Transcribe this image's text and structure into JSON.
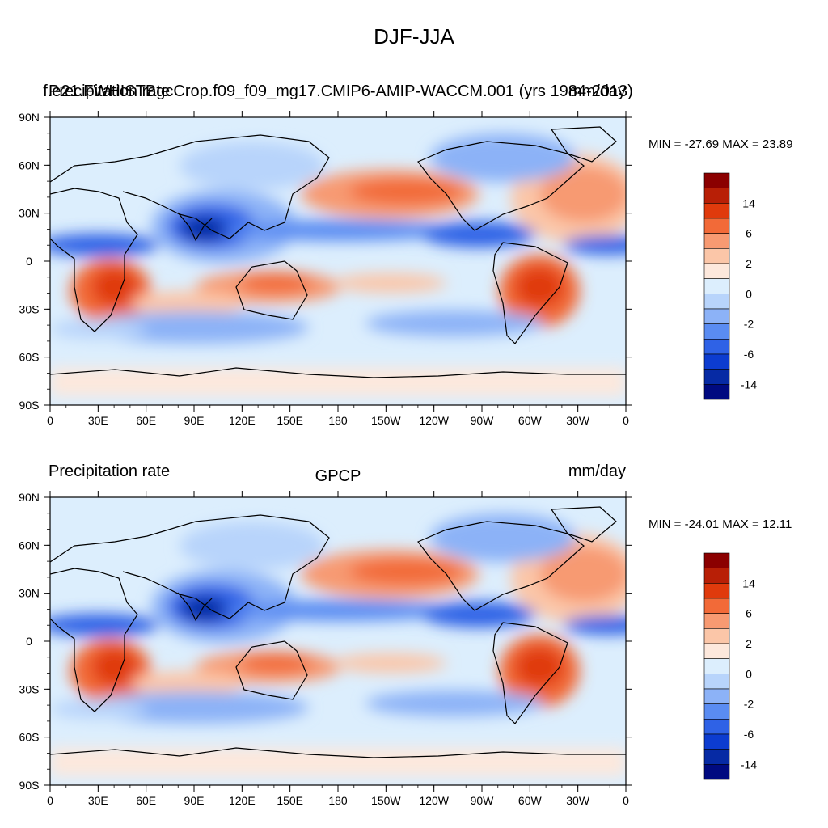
{
  "figure": {
    "title": "DJF-JJA"
  },
  "panels": [
    {
      "left_title": "Precipitation rate",
      "center_title": "f.e21.FWHISTBgcCrop.f09_f09_mg17.CMIP6-AMIP-WACCM.001 (yrs 1984-2013)",
      "right_title": "mm/day",
      "stats": "MIN = -27.69 MAX =  23.89"
    },
    {
      "left_title": "Precipitation rate",
      "center_title": "GPCP",
      "right_title": "mm/day",
      "stats": "MIN = -24.01 MAX =  12.11"
    }
  ],
  "axes": {
    "lat_labels": [
      "90N",
      "60N",
      "30N",
      "0",
      "30S",
      "60S",
      "90S"
    ],
    "lon_labels": [
      "0",
      "30E",
      "60E",
      "90E",
      "120E",
      "150E",
      "180",
      "150W",
      "120W",
      "90W",
      "60W",
      "30W",
      "0"
    ]
  },
  "colorbar": {
    "labels": [
      "14",
      "6",
      "2",
      "0",
      "-2",
      "-6",
      "-14"
    ],
    "colors": [
      "#8b0000",
      "#b81f06",
      "#e03a0c",
      "#f26a38",
      "#f79a72",
      "#fbc6a8",
      "#fde8dc",
      "#dceefd",
      "#b8d4fb",
      "#8cb2f7",
      "#5a8cf2",
      "#2f62e6",
      "#0c3cd0",
      "#062aa4",
      "#000a80"
    ]
  }
}
